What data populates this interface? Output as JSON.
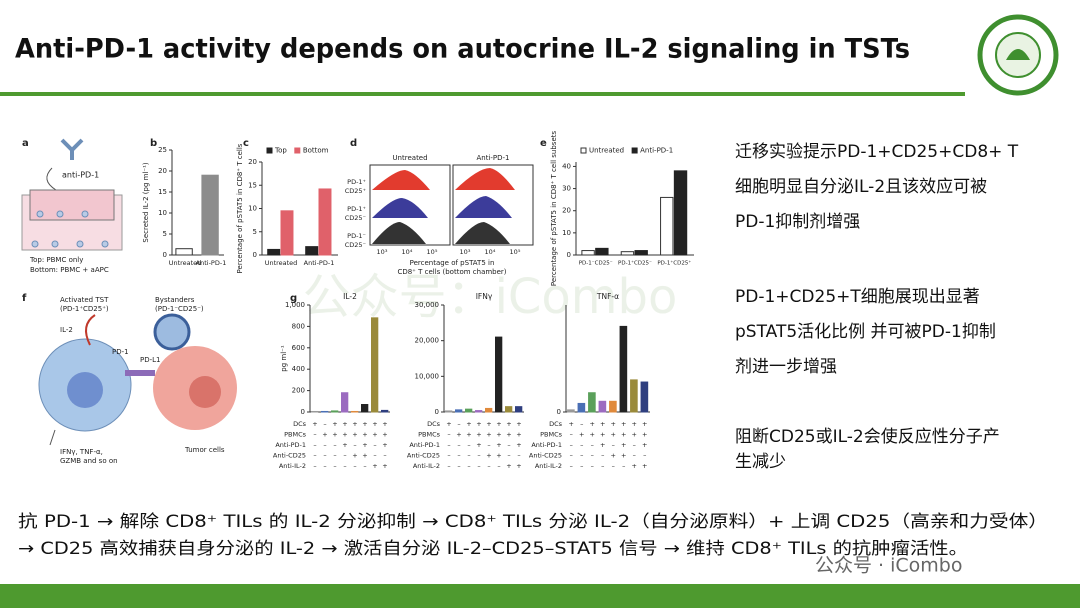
{
  "header": {
    "title": "Anti-PD-1 activity depends on autocrine IL-2 signaling in TSTs"
  },
  "watermark": "公众号：iCombo",
  "footer_watermark": "公众号 · iCombo",
  "notes": [
    [
      "迁移实验提示PD-1+CD25+CD8+ T",
      "细胞明显自分泌IL-2且该效应可被",
      "PD-1抑制剂增强"
    ],
    [
      "PD-1+CD25+T细胞展现出显著",
      "pSTAT5活化比例 并可被PD-1抑制",
      "剂进一步增强"
    ],
    [
      "阻断CD25或IL-2会使反应性分子产",
      "生减少"
    ]
  ],
  "summary": [
    "抗 PD-1 → 解除 CD8⁺  TILs 的 IL-2 分泌抑制 → CD8⁺  TILs 分泌 IL-2（自分泌原料）+ 上调 CD25（高亲和力受体）",
    "→ CD25 高效捕获自身分泌的 IL-2 → 激活自分泌 IL-2–CD25–STAT5 信号 → 维持 CD8⁺  TILs 的抗肿瘤活性。"
  ],
  "figure": {
    "a": {
      "letter": "a",
      "labels": [
        "anti-PD-1",
        "Top: PBMC only",
        "Bottom: PBMC + aAPC"
      ]
    },
    "b": {
      "letter": "b",
      "type": "bar",
      "ylabel": "Secreted IL-2 (pg ml⁻¹)",
      "categories": [
        "Untreated",
        "Anti-PD-1"
      ],
      "series": [
        {
          "colors": [
            "#ffffff",
            "#8c8c8c"
          ],
          "values": [
            1.5,
            19
          ]
        }
      ],
      "ylim": [
        0,
        25
      ],
      "yticks": [
        0,
        5,
        10,
        15,
        20,
        25
      ]
    },
    "c": {
      "letter": "c",
      "type": "bar",
      "ylabel": "Percentage of pSTAT5 in CD8⁺ T cells",
      "categories": [
        "Untreated",
        "Anti-PD-1"
      ],
      "series": [
        {
          "name": "Top",
          "color": "#222222",
          "values": [
            1.2,
            1.8
          ]
        },
        {
          "name": "Bottom",
          "color": "#e0616a",
          "values": [
            9.5,
            14.2
          ]
        }
      ],
      "ylim": [
        0,
        20
      ],
      "yticks": [
        0,
        5,
        10,
        15,
        20
      ]
    },
    "d": {
      "letter": "d",
      "columns": [
        "Untreated",
        "Anti-PD-1"
      ],
      "rows": [
        [
          "PD-1⁺",
          "CD25⁺"
        ],
        [
          "PD-1⁺",
          "CD25⁻"
        ],
        [
          "PD-1⁻",
          "CD25⁻"
        ]
      ],
      "xticks": [
        "10³",
        "10⁴",
        "10⁵"
      ],
      "xlabel": [
        "Percentage of pSTAT5 in",
        "CD8⁺ T cells (bottom chamber)"
      ]
    },
    "e": {
      "letter": "e",
      "type": "bar",
      "ylabel": "Percentage of pSTAT5 in CD8⁺ T cell subsets",
      "categories": [
        "PD-1⁻CD25⁻",
        "PD-1⁺CD25⁻",
        "PD-1⁺CD25⁺"
      ],
      "series": [
        {
          "name": "Untreated",
          "color": "#ffffff",
          "values": [
            2,
            1.5,
            26
          ]
        },
        {
          "name": "Anti-PD-1",
          "color": "#222222",
          "values": [
            3,
            2,
            38
          ]
        }
      ],
      "ylim": [
        0,
        42
      ],
      "yticks": [
        0,
        10,
        20,
        30,
        40
      ]
    },
    "f": {
      "letter": "f",
      "labels": [
        "Activated TST",
        "(PD-1⁺CD25⁺)",
        "Bystanders",
        "(PD-1⁻CD25⁻)",
        "IL-2",
        "PD-L1",
        "PD-1",
        "IFNγ, TNF-α,",
        "GZMB and so on",
        "Tumor cells"
      ]
    },
    "g": {
      "letter": "g",
      "conditions": {
        "rows": [
          "DCs",
          "PBMCs",
          "Anti-PD-1",
          "Anti-CD25",
          "Anti-IL-2"
        ],
        "signs": [
          [
            "+",
            "–",
            "+",
            "+",
            "+",
            "+",
            "+",
            "+"
          ],
          [
            "–",
            "+",
            "+",
            "+",
            "+",
            "+",
            "+",
            "+"
          ],
          [
            "–",
            "–",
            "–",
            "+",
            "–",
            "+",
            "–",
            "+"
          ],
          [
            "–",
            "–",
            "–",
            "–",
            "+",
            "+",
            "–",
            "–"
          ],
          [
            "–",
            "–",
            "–",
            "–",
            "–",
            "–",
            "+",
            "+"
          ]
        ]
      },
      "charts": [
        {
          "type": "bar",
          "title": "IL-2",
          "ylabel": "pg ml⁻¹",
          "ylim": [
            0,
            1000
          ],
          "yticks": [
            0,
            200,
            400,
            600,
            800,
            {
              "value": 1000,
              "label": "1,000"
            }
          ],
          "series": [
            {
              "colors": [
                "#999999",
                "#4a6fb5",
                "#5aa05a",
                "#9b6bc0",
                "#e08a3c",
                "#222222",
                "#9a8a3a",
                "#2f3f7f"
              ],
              "values": [
                5,
                5,
                10,
                180,
                5,
                70,
                880,
                15
              ]
            }
          ]
        },
        {
          "type": "bar",
          "title": "IFNγ",
          "ylim": [
            0,
            30000
          ],
          "yticks": [
            0,
            {
              "value": 10000,
              "label": "10,000"
            },
            {
              "value": 20000,
              "label": "20,000"
            },
            {
              "value": 30000,
              "label": "30,000"
            }
          ],
          "series": [
            {
              "colors": [
                "#999999",
                "#4a6fb5",
                "#5aa05a",
                "#9b6bc0",
                "#e08a3c",
                "#222222",
                "#9a8a3a",
                "#2f3f7f"
              ],
              "values": [
                300,
                600,
                800,
                400,
                1000,
                21000,
                1500,
                1500
              ]
            }
          ]
        },
        {
          "type": "bar",
          "title": "TNF-α",
          "ylim": [
            0,
            100
          ],
          "yticks": [
            0
          ],
          "series": [
            {
              "colors": [
                "#999999",
                "#4a6fb5",
                "#5aa05a",
                "#9b6bc0",
                "#e08a3c",
                "#222222",
                "#9a8a3a",
                "#2f3f7f"
              ],
              "values": [
                2,
                8,
                18,
                10,
                10,
                80,
                30,
                28
              ]
            }
          ]
        }
      ]
    }
  }
}
